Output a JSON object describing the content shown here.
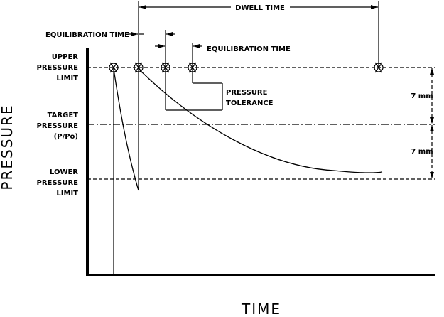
{
  "diagram": {
    "axes": {
      "x_label": "TIME",
      "y_label": "PRESSURE"
    },
    "levels": {
      "upper": [
        "UPPER",
        "PRESSURE",
        "LIMIT"
      ],
      "target": [
        "TARGET",
        "PRESSURE",
        "(P/Po)"
      ],
      "lower": [
        "LOWER",
        "PRESSURE",
        "LIMIT"
      ]
    },
    "annotations": {
      "dwell_time": "DWELL TIME",
      "equilibration_time_left": "EQUILIBRATION TIME",
      "equilibration_time_right": "EQUILIBRATION TIME",
      "pressure_tolerance": [
        "PRESSURE",
        "TOLERANCE"
      ],
      "gap_upper_target": "7 mm",
      "gap_target_lower": "7 mm"
    },
    "marker_count": 5
  }
}
